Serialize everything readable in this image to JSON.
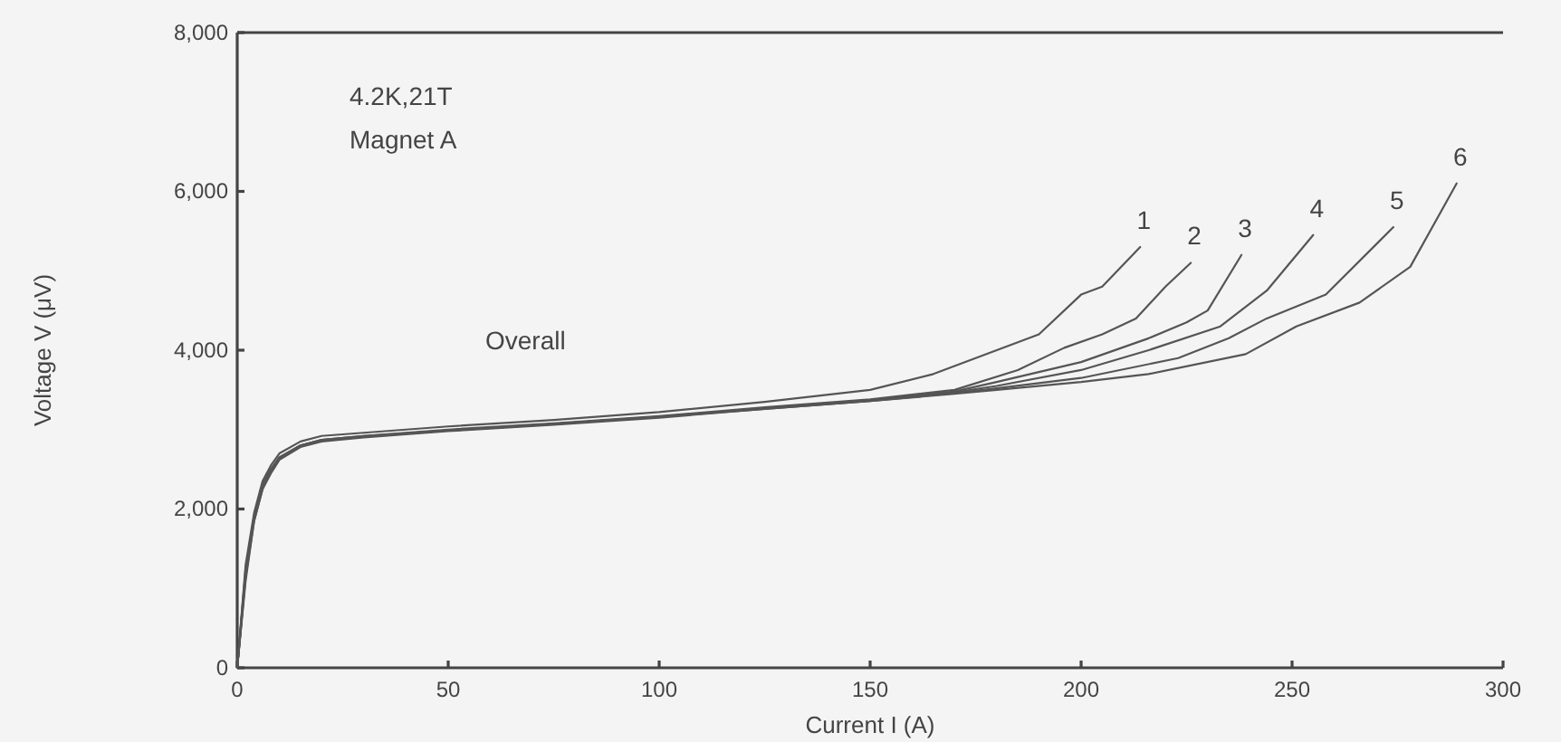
{
  "chart_data": {
    "type": "line",
    "xlabel": "Current I (A)",
    "ylabel": "Voltage V (μV)",
    "annotations": [
      "4.2K,21T",
      "Magnet A",
      "Overall"
    ],
    "xlim": [
      0,
      300
    ],
    "xticks": [
      0,
      50,
      100,
      150,
      200,
      250,
      300
    ],
    "ylim": [
      0,
      8000
    ],
    "yticks": [
      {
        "value": 0,
        "label": "0"
      },
      {
        "value": 2000,
        "label": "2,000"
      },
      {
        "value": 4000,
        "label": "4,000"
      },
      {
        "value": 6000,
        "label": "6,000"
      },
      {
        "value": 8000,
        "label": "8,000"
      }
    ],
    "grid": false,
    "marker": "none",
    "line_style": "solid",
    "series": [
      {
        "name": "1",
        "color": "#555555",
        "x": [
          0,
          2,
          4,
          6,
          8,
          10,
          15,
          20,
          30,
          50,
          75,
          100,
          125,
          150,
          165,
          175,
          190,
          200,
          205,
          214
        ],
        "values": [
          0,
          1300,
          1950,
          2350,
          2550,
          2700,
          2850,
          2920,
          2960,
          3040,
          3120,
          3220,
          3350,
          3500,
          3700,
          3900,
          4200,
          4700,
          4800,
          5300
        ]
      },
      {
        "name": "2",
        "color": "#555555",
        "x": [
          0,
          2,
          4,
          6,
          8,
          10,
          15,
          20,
          30,
          50,
          75,
          100,
          125,
          150,
          170,
          185,
          196,
          205,
          213,
          220,
          226
        ],
        "values": [
          0,
          1200,
          1900,
          2300,
          2500,
          2650,
          2800,
          2870,
          2920,
          3000,
          3080,
          3170,
          3280,
          3380,
          3500,
          3750,
          4030,
          4200,
          4400,
          4800,
          5100
        ]
      },
      {
        "name": "3",
        "color": "#555555",
        "x": [
          0,
          2,
          4,
          6,
          8,
          10,
          15,
          20,
          30,
          50,
          75,
          100,
          125,
          150,
          170,
          180,
          200,
          216,
          225,
          230,
          238
        ],
        "values": [
          0,
          1100,
          1850,
          2250,
          2480,
          2630,
          2790,
          2860,
          2910,
          2990,
          3070,
          3160,
          3270,
          3370,
          3480,
          3600,
          3850,
          4150,
          4350,
          4500,
          5200
        ]
      },
      {
        "name": "4",
        "color": "#555555",
        "x": [
          0,
          2,
          4,
          6,
          8,
          10,
          15,
          20,
          30,
          50,
          75,
          100,
          125,
          150,
          170,
          180,
          200,
          216,
          233,
          244,
          255
        ],
        "values": [
          0,
          1250,
          1900,
          2300,
          2500,
          2650,
          2800,
          2870,
          2920,
          2990,
          3070,
          3160,
          3270,
          3370,
          3470,
          3550,
          3750,
          4000,
          4300,
          4750,
          5450
        ]
      },
      {
        "name": "5",
        "color": "#555555",
        "x": [
          0,
          2,
          4,
          6,
          8,
          10,
          15,
          20,
          30,
          50,
          75,
          100,
          125,
          150,
          170,
          180,
          200,
          223,
          235,
          244,
          258,
          274
        ],
        "values": [
          0,
          1150,
          1850,
          2250,
          2450,
          2620,
          2780,
          2850,
          2900,
          2980,
          3060,
          3150,
          3260,
          3360,
          3460,
          3520,
          3650,
          3900,
          4150,
          4400,
          4700,
          5550
        ]
      },
      {
        "name": "6",
        "color": "#555555",
        "x": [
          0,
          2,
          4,
          6,
          8,
          10,
          15,
          20,
          30,
          50,
          75,
          100,
          125,
          150,
          170,
          180,
          200,
          216,
          239,
          251,
          266,
          278,
          289
        ],
        "values": [
          0,
          1200,
          1900,
          2300,
          2500,
          2640,
          2800,
          2860,
          2910,
          2990,
          3070,
          3160,
          3260,
          3360,
          3450,
          3500,
          3600,
          3700,
          3950,
          4300,
          4600,
          5050,
          6100
        ]
      }
    ]
  }
}
